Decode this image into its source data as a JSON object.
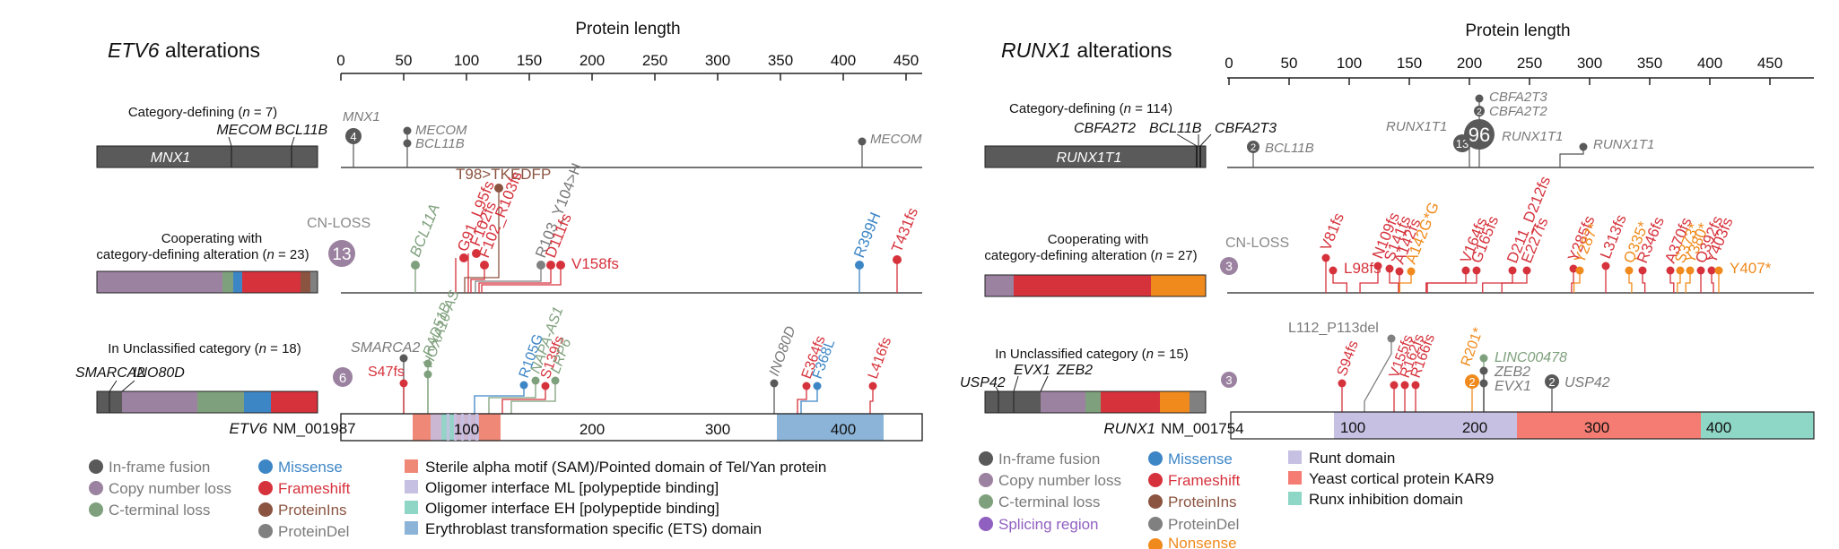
{
  "colors": {
    "fusion": "#595959",
    "cnloss": "#9b82a0",
    "cterm": "#7fa07d",
    "missense": "#3d86c6",
    "frameshift": "#d6323c",
    "proteinins": "#8b5441",
    "proteindel": "#808080",
    "nonsense": "#f08a1c",
    "splicing": "#9060c0",
    "sam": "#f08878",
    "ml": "#c6c0e2",
    "eh": "#8fd6c6",
    "ets": "#8cb4d8",
    "runt": "#c6c0e2",
    "kar9": "#f47c72",
    "runxinh": "#8ed6c6",
    "grey_label": "#7a7a7a",
    "bar_dark": "#5a5a5a"
  },
  "etv6": {
    "title_gene": "ETV6",
    "title_rest": " alterations",
    "axis_title": "Protein length",
    "axis_ticks": [
      "0",
      "50",
      "100",
      "150",
      "200",
      "250",
      "300",
      "350",
      "400",
      "450"
    ],
    "row1": {
      "label_pre": "Category-defining (",
      "label_n": "n",
      "label_post": " = 7)",
      "bar_text": "MNX1",
      "bar_labels": [
        "MECOM",
        "BCL11B"
      ],
      "lollipops": [
        {
          "pos": 10,
          "label": "MNX1",
          "count": "4"
        },
        {
          "pos": 53,
          "label": "MECOM"
        },
        {
          "pos": 53,
          "label": "BCL11B"
        },
        {
          "pos": 415,
          "label": "MECOM"
        }
      ]
    },
    "row2": {
      "label_line1": "Cooperating with",
      "label_line2_pre": "category-defining alteration (",
      "label_n": "n",
      "label_post": " = 23)",
      "cn_label": "CN-LOSS",
      "cn_count": "13",
      "lollipops": [
        {
          "pos": 55,
          "label": "BCL11A",
          "type": "cterm"
        },
        {
          "pos": 91,
          "label": "G91_L95fs",
          "type": "frameshift"
        },
        {
          "pos": 98,
          "label": "T98>TKEDFP",
          "type": "proteinins"
        },
        {
          "pos": 102,
          "label": "F102fs",
          "type": "frameshift"
        },
        {
          "pos": 102,
          "label": "F102_R103fs",
          "type": "frameshift"
        },
        {
          "pos": 103,
          "label": "R103_Y104>H",
          "type": "proteindel"
        },
        {
          "pos": 111,
          "label": "D111fs",
          "type": "frameshift"
        },
        {
          "pos": 158,
          "label": "V158fs",
          "type": "frameshift"
        },
        {
          "pos": 399,
          "label": "R399H",
          "type": "missense"
        },
        {
          "pos": 431,
          "label": "T431fs",
          "type": "frameshift"
        }
      ]
    },
    "row3": {
      "label_pre": "In Unclassified category (",
      "label_n": "n",
      "label_post": " = 18)",
      "bar_labels": [
        "SMARCA2",
        "INO80D"
      ],
      "cn_count": "6",
      "lollipops": [
        {
          "pos": 47,
          "label": "SMARCA2",
          "type": "fusion"
        },
        {
          "pos": 47,
          "label": "S47fs",
          "type": "frameshift"
        },
        {
          "pos": 65,
          "label": "RAD51B",
          "type": "cterm"
        },
        {
          "pos": 65,
          "label": "HOXA10-AS",
          "type": "cterm"
        },
        {
          "pos": 105,
          "label": "R105G",
          "type": "missense"
        },
        {
          "pos": 139,
          "label": "NAPA-AS1",
          "type": "cterm"
        },
        {
          "pos": 139,
          "label": "S139fs",
          "type": "frameshift"
        },
        {
          "pos": 150,
          "label": "LRP6",
          "type": "cterm"
        },
        {
          "pos": 340,
          "label": "INO80D",
          "type": "fusion"
        },
        {
          "pos": 364,
          "label": "E364fs",
          "type": "frameshift"
        },
        {
          "pos": 368,
          "label": "F368L",
          "type": "missense"
        },
        {
          "pos": 416,
          "label": "L416fs",
          "type": "frameshift"
        }
      ]
    },
    "protein": {
      "gene": "ETV6",
      "accession": "NM_001987",
      "ticks": [
        "100",
        "200",
        "300",
        "400"
      ]
    },
    "legend_types": [
      {
        "label": "In-frame fusion",
        "color": "fusion"
      },
      {
        "label": "Copy number loss",
        "color": "cnloss"
      },
      {
        "label": "C-terminal loss",
        "color": "cterm"
      },
      {
        "label": "Missense",
        "color": "missense"
      },
      {
        "label": "Frameshift",
        "color": "frameshift"
      },
      {
        "label": "ProteinIns",
        "color": "proteinins"
      },
      {
        "label": "ProteinDel",
        "color": "proteindel"
      }
    ],
    "legend_domains": [
      {
        "label": "Sterile alpha motif (SAM)/Pointed domain of Tel/Yan protein",
        "color": "sam"
      },
      {
        "label": "Oligomer interface ML [polypeptide binding]",
        "color": "ml"
      },
      {
        "label": "Oligomer interface EH [polypeptide binding]",
        "color": "eh"
      },
      {
        "label": "Erythroblast transformation specific (ETS) domain",
        "color": "ets"
      }
    ]
  },
  "runx1": {
    "title_gene": "RUNX1",
    "title_rest": " alterations",
    "axis_title": "Protein length",
    "axis_ticks": [
      "0",
      "50",
      "100",
      "150",
      "200",
      "250",
      "300",
      "350",
      "400",
      "450"
    ],
    "row1": {
      "label_pre": "Category-defining (",
      "label_n": "n",
      "label_post": " = 114)",
      "bar_text": "RUNX1T1",
      "bar_labels": [
        "CBFA2T2",
        "BCL11B",
        "CBFA2T3"
      ],
      "lollipops": [
        {
          "pos": 20,
          "label": "BCL11B",
          "count": "2"
        },
        {
          "pos": 197,
          "label": "RUNX1T1",
          "count": "13"
        },
        {
          "pos": 205,
          "label": "RUNX1T1",
          "count": "96"
        },
        {
          "pos": 205,
          "label": "CBFA2T2",
          "count": "2"
        },
        {
          "pos": 205,
          "label": "CBFA2T3"
        },
        {
          "pos": 287,
          "label": "RUNX1T1"
        }
      ]
    },
    "row2": {
      "label_line1": "Cooperating with",
      "label_line2_pre": "category-defining alteration (",
      "label_n": "n",
      "label_post": " = 27)",
      "cn_label": "CN-LOSS",
      "cn_count": "3",
      "lollipops": [
        {
          "pos": 81,
          "label": "V81fs",
          "type": "frameshift"
        },
        {
          "pos": 98,
          "label": "L98fs",
          "type": "frameshift"
        },
        {
          "pos": 109,
          "label": "N109fs",
          "type": "frameshift"
        },
        {
          "pos": 141,
          "label": "S141fs",
          "type": "frameshift"
        },
        {
          "pos": 142,
          "label": "A142fs",
          "type": "frameshift"
        },
        {
          "pos": 142,
          "label": "A142G*G",
          "type": "nonsense"
        },
        {
          "pos": 164,
          "label": "V164fs",
          "type": "frameshift"
        },
        {
          "pos": 165,
          "label": "G165fs",
          "type": "frameshift"
        },
        {
          "pos": 211,
          "label": "D211_D212fs",
          "type": "frameshift"
        },
        {
          "pos": 227,
          "label": "E227fs",
          "type": "frameshift"
        },
        {
          "pos": 285,
          "label": "Y285fs",
          "type": "frameshift"
        },
        {
          "pos": 287,
          "label": "Y287*",
          "type": "nonsense"
        },
        {
          "pos": 313,
          "label": "L313fs",
          "type": "frameshift"
        },
        {
          "pos": 335,
          "label": "Q335*",
          "type": "nonsense"
        },
        {
          "pos": 346,
          "label": "R346fs",
          "type": "frameshift"
        },
        {
          "pos": 370,
          "label": "A370fs",
          "type": "frameshift"
        },
        {
          "pos": 373,
          "label": "S373*",
          "type": "nonsense"
        },
        {
          "pos": 380,
          "label": "Y380*",
          "type": "nonsense"
        },
        {
          "pos": 392,
          "label": "Q392fs",
          "type": "frameshift"
        },
        {
          "pos": 403,
          "label": "Y403fs",
          "type": "frameshift"
        },
        {
          "pos": 407,
          "label": "Y407*",
          "type": "nonsense"
        }
      ]
    },
    "row3": {
      "label_pre": "In Unclassified category (",
      "label_n": "n",
      "label_post": " = 15)",
      "bar_labels": [
        "USP42",
        "EVX1",
        "ZEB2"
      ],
      "cn_count": "3",
      "lollipops": [
        {
          "pos": 94,
          "label": "S94fs",
          "type": "frameshift"
        },
        {
          "pos": 112,
          "label": "L112_P113del",
          "type": "proteindel"
        },
        {
          "pos": 155,
          "label": "V155fs",
          "type": "frameshift"
        },
        {
          "pos": 162,
          "label": "R162fs",
          "type": "frameshift"
        },
        {
          "pos": 166,
          "label": "R166fs",
          "type": "frameshift"
        },
        {
          "pos": 201,
          "label": "R201*",
          "type": "nonsense",
          "count": "2"
        },
        {
          "pos": 205,
          "label": "LINC00478",
          "type": "cterm"
        },
        {
          "pos": 205,
          "label": "ZEB2",
          "type": "fusion"
        },
        {
          "pos": 205,
          "label": "EVX1",
          "type": "fusion"
        },
        {
          "pos": 280,
          "label": "USP42",
          "type": "fusion",
          "count": "2"
        }
      ]
    },
    "protein": {
      "gene": "RUNX1",
      "accession": "NM_001754",
      "ticks": [
        "100",
        "200",
        "300",
        "400"
      ]
    },
    "legend_types": [
      {
        "label": "In-frame fusion",
        "color": "fusion"
      },
      {
        "label": "Copy number loss",
        "color": "cnloss"
      },
      {
        "label": "C-terminal loss",
        "color": "cterm"
      },
      {
        "label": "Splicing region",
        "color": "splicing"
      },
      {
        "label": "Missense",
        "color": "missense"
      },
      {
        "label": "Frameshift",
        "color": "frameshift"
      },
      {
        "label": "ProteinIns",
        "color": "proteinins"
      },
      {
        "label": "ProteinDel",
        "color": "proteindel"
      },
      {
        "label": "Nonsense",
        "color": "nonsense"
      }
    ],
    "legend_domains": [
      {
        "label": "Runt domain",
        "color": "runt"
      },
      {
        "label": "Yeast cortical protein KAR9",
        "color": "kar9"
      },
      {
        "label": "Runx inhibition domain",
        "color": "runxinh"
      }
    ]
  }
}
